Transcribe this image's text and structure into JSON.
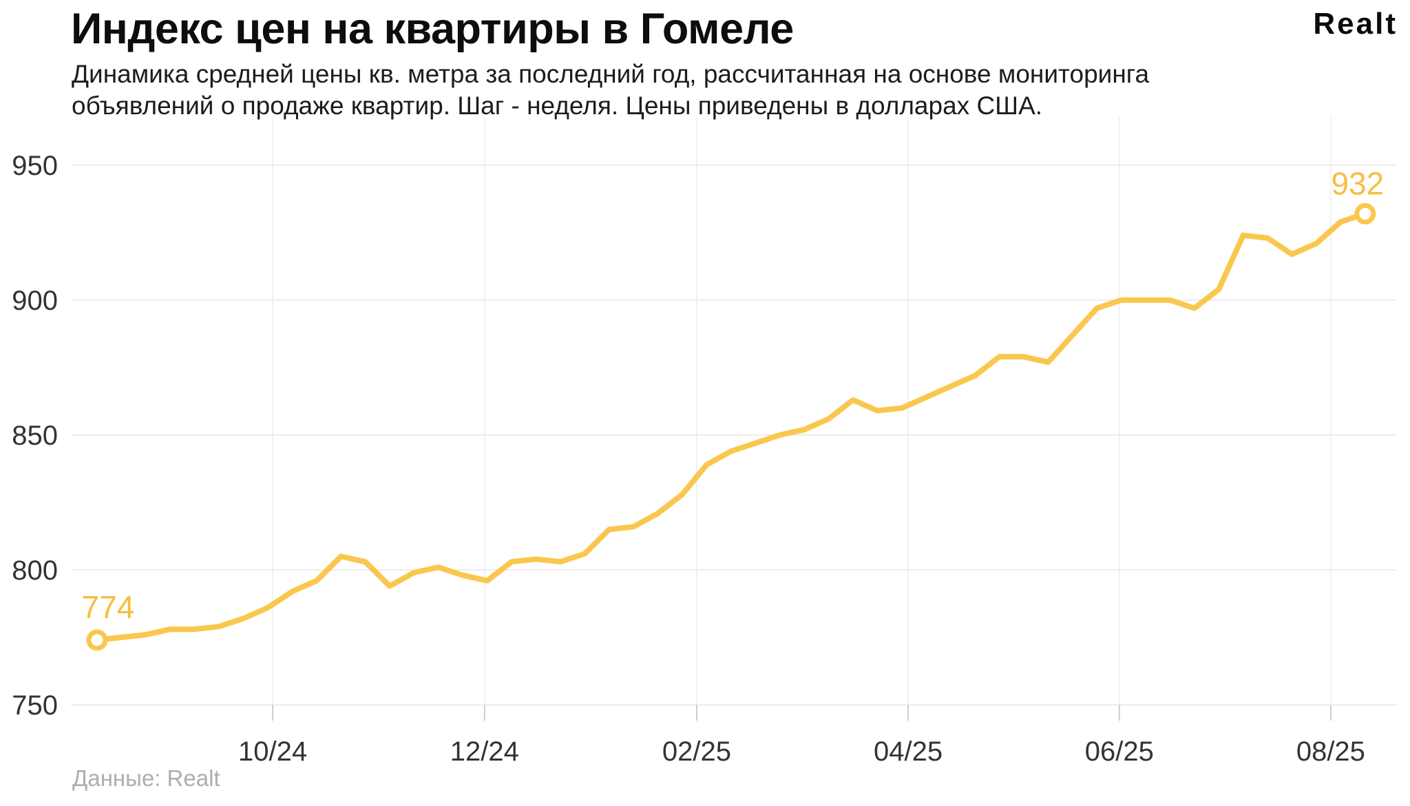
{
  "header": {
    "title": "Индекс цен на квартиры в Гомеле",
    "subtitle_line1": "Динамика средней цены кв. метра за последний год, рассчитанная на основе мониторинга",
    "subtitle_line2": "объявлений о продаже квартир. Шаг - неделя. Цены приведены в долларах США.",
    "logo_text": "Realt"
  },
  "footer": {
    "source_note": "Данные: Realt"
  },
  "chart_data": {
    "type": "line",
    "title": "Индекс цен на квартиры в Гомеле",
    "step": "week",
    "currency": "USD",
    "values": [
      774,
      775,
      776,
      778,
      778,
      779,
      782,
      786,
      792,
      796,
      805,
      803,
      794,
      799,
      801,
      798,
      796,
      803,
      804,
      803,
      806,
      815,
      816,
      821,
      828,
      839,
      844,
      847,
      850,
      852,
      856,
      863,
      859,
      860,
      864,
      868,
      872,
      879,
      879,
      877,
      887,
      897,
      900,
      900,
      900,
      897,
      904,
      924,
      923,
      917,
      921,
      929,
      932
    ],
    "first_point_label": "774",
    "last_point_label": "932",
    "y_ticks": [
      950,
      900,
      850,
      800,
      750
    ],
    "ylim": [
      740,
      965
    ],
    "x_tick_labels": [
      "10/24",
      "12/24",
      "02/25",
      "04/25",
      "06/25",
      "08/25"
    ],
    "x_tick_week_positions": [
      7.2,
      15.89,
      24.59,
      33.26,
      41.92,
      50.59
    ],
    "grid": "on",
    "legend": "none",
    "line_color": "#FAC74E",
    "marker_fill": "#ffffff",
    "label_color": "#F6BE42",
    "axis_text_color": "#333333",
    "gridline_color": "#ededed"
  }
}
